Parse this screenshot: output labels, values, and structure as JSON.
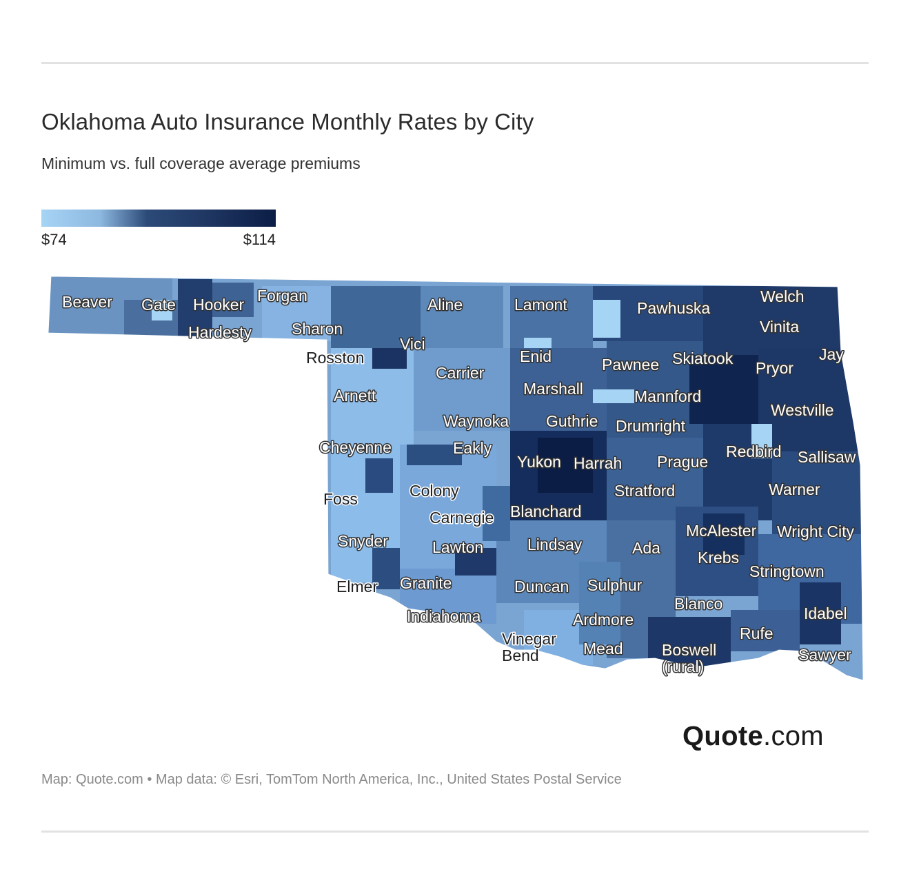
{
  "title": "Oklahoma Auto Insurance Monthly Rates by City",
  "subtitle": "Minimum vs. full coverage average premiums",
  "legend": {
    "min_label": "$74",
    "max_label": "$114",
    "min_value": 74,
    "max_value": 114,
    "color_low": "#a6d4f5",
    "color_mid": "#2c4a78",
    "color_high": "#0b1d45"
  },
  "map": {
    "region": "Oklahoma",
    "cities": [
      {
        "name": "Beaver"
      },
      {
        "name": "Gate"
      },
      {
        "name": "Hooker"
      },
      {
        "name": "Forgan"
      },
      {
        "name": "Hardesty"
      },
      {
        "name": "Sharon"
      },
      {
        "name": "Aline"
      },
      {
        "name": "Lamont"
      },
      {
        "name": "Pawhuska"
      },
      {
        "name": "Welch"
      },
      {
        "name": "Vinita"
      },
      {
        "name": "Vici"
      },
      {
        "name": "Rosston"
      },
      {
        "name": "Enid"
      },
      {
        "name": "Carrier"
      },
      {
        "name": "Pawnee"
      },
      {
        "name": "Skiatook"
      },
      {
        "name": "Jay"
      },
      {
        "name": "Pryor"
      },
      {
        "name": "Marshall"
      },
      {
        "name": "Arnett"
      },
      {
        "name": "Mannford"
      },
      {
        "name": "Westville"
      },
      {
        "name": "Waynoka"
      },
      {
        "name": "Guthrie"
      },
      {
        "name": "Drumright"
      },
      {
        "name": "Cheyenne"
      },
      {
        "name": "Eakly"
      },
      {
        "name": "Redbird"
      },
      {
        "name": "Sallisaw"
      },
      {
        "name": "Yukon"
      },
      {
        "name": "Harrah"
      },
      {
        "name": "Prague"
      },
      {
        "name": "Foss"
      },
      {
        "name": "Colony"
      },
      {
        "name": "Stratford"
      },
      {
        "name": "Warner"
      },
      {
        "name": "Carnegie"
      },
      {
        "name": "Blanchard"
      },
      {
        "name": "McAlester"
      },
      {
        "name": "Wright City"
      },
      {
        "name": "Snyder"
      },
      {
        "name": "Lawton"
      },
      {
        "name": "Lindsay"
      },
      {
        "name": "Ada"
      },
      {
        "name": "Krebs"
      },
      {
        "name": "Stringtown"
      },
      {
        "name": "Elmer"
      },
      {
        "name": "Granite"
      },
      {
        "name": "Duncan"
      },
      {
        "name": "Sulphur"
      },
      {
        "name": "Blanco"
      },
      {
        "name": "Idabel"
      },
      {
        "name": "Indiahoma"
      },
      {
        "name": "Ardmore"
      },
      {
        "name": "Rufe"
      },
      {
        "name": "Vinegar Bend"
      },
      {
        "name": "Mead"
      },
      {
        "name": "Boswell (rural)"
      },
      {
        "name": "Sawyer"
      }
    ]
  },
  "brand": {
    "bold": "Quote",
    "rest": ".com"
  },
  "source": "Map: Quote.com • Map data: © Esri, TomTom North America, Inc., United States Postal Service"
}
